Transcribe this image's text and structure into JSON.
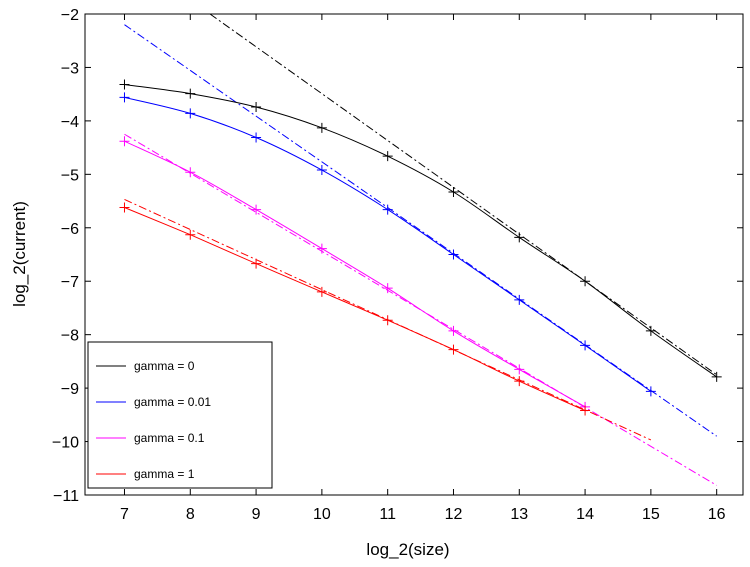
{
  "chart_data": {
    "type": "line",
    "title": "",
    "xlabel": "log_2(size)",
    "ylabel": "log_2(current)",
    "xlim": [
      6.4,
      16.4
    ],
    "ylim": [
      -11,
      -2
    ],
    "xticks": [
      7,
      8,
      9,
      10,
      11,
      12,
      13,
      14,
      15,
      16
    ],
    "yticks": [
      -11,
      -10,
      -9,
      -8,
      -7,
      -6,
      -5,
      -4,
      -3,
      -2
    ],
    "grid": false,
    "legend": "bottom-left",
    "series": [
      {
        "name": "gamma = 0",
        "color": "#000000",
        "x": [
          7,
          8,
          9,
          10,
          11,
          12,
          13,
          14,
          15,
          16
        ],
        "y": [
          -3.32,
          -3.49,
          -3.74,
          -4.13,
          -4.66,
          -5.33,
          -6.18,
          -7.0,
          -7.93,
          -8.79
        ],
        "fit": {
          "x": [
            8.3,
            16
          ],
          "y": [
            -2.0,
            -8.75
          ]
        }
      },
      {
        "name": "gamma = 0.01",
        "color": "#0000ff",
        "x": [
          7,
          8,
          9,
          10,
          11,
          12,
          13,
          14,
          15
        ],
        "y": [
          -3.56,
          -3.86,
          -4.31,
          -4.92,
          -5.66,
          -6.5,
          -7.35,
          -8.2,
          -9.06
        ],
        "fit": {
          "x": [
            7,
            16
          ],
          "y": [
            -2.2,
            -9.9
          ]
        }
      },
      {
        "name": "gamma = 0.1",
        "color": "#ff00ff",
        "x": [
          7,
          8,
          9,
          10,
          11,
          12,
          13,
          14
        ],
        "y": [
          -4.38,
          -4.96,
          -5.66,
          -6.39,
          -7.13,
          -7.93,
          -8.65,
          -9.35
        ],
        "fit": {
          "x": [
            7,
            16
          ],
          "y": [
            -4.25,
            -10.82
          ]
        }
      },
      {
        "name": "gamma = 1",
        "color": "#ff0000",
        "x": [
          7,
          8,
          9,
          10,
          11,
          12,
          13,
          14
        ],
        "y": [
          -5.62,
          -6.13,
          -6.67,
          -7.2,
          -7.73,
          -8.28,
          -8.87,
          -9.42
        ],
        "fit": {
          "x": [
            7,
            15
          ],
          "y": [
            -5.47,
            -9.97
          ]
        }
      }
    ]
  }
}
